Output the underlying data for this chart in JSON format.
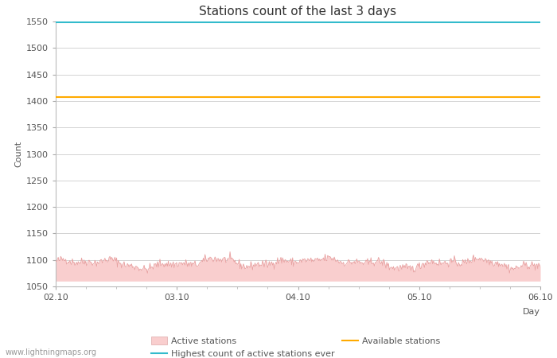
{
  "title": "Stations count of the last 3 days",
  "xlabel": "Day",
  "ylabel": "Count",
  "ylim": [
    1050,
    1550
  ],
  "yticks": [
    1050,
    1100,
    1150,
    1200,
    1250,
    1300,
    1350,
    1400,
    1450,
    1500,
    1550
  ],
  "xlim_days": [
    0,
    96
  ],
  "xtick_positions": [
    0,
    24,
    48,
    72,
    96
  ],
  "xtick_labels": [
    "02.10",
    "03.10",
    "04.10",
    "05.10",
    "06.10"
  ],
  "highest_ever_value": 1549,
  "available_stations_value": 1407,
  "active_stations_base": 1060,
  "active_color_fill": "#f9cece",
  "active_color_line": "#e8a0a0",
  "highest_color": "#33bbcc",
  "available_color": "#ffaa00",
  "watermark": "www.lightningmaps.org",
  "bg_color": "#ffffff",
  "grid_color": "#cccccc",
  "title_fontsize": 11,
  "axis_fontsize": 8,
  "tick_fontsize": 8,
  "legend_fontsize": 8
}
